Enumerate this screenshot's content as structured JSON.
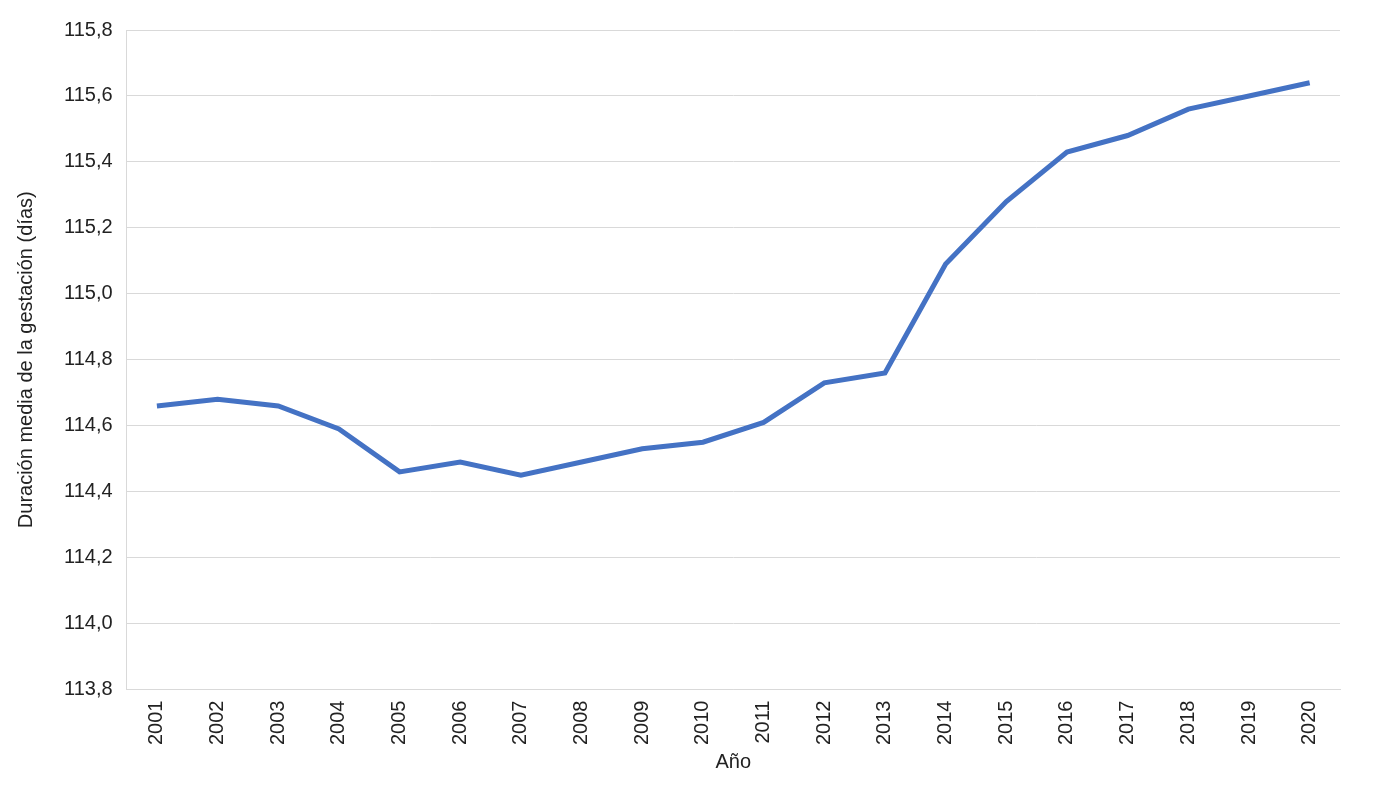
{
  "chart_data": {
    "type": "line",
    "x_label": "Año",
    "y_label": "Duración media de la gestación (días)",
    "categories": [
      "2001",
      "2002",
      "2003",
      "2004",
      "2005",
      "2006",
      "2007",
      "2008",
      "2009",
      "2010",
      "2011",
      "2012",
      "2013",
      "2014",
      "2015",
      "2016",
      "2017",
      "2018",
      "2019",
      "2020"
    ],
    "values": [
      114.66,
      114.68,
      114.66,
      114.59,
      114.46,
      114.49,
      114.45,
      114.49,
      114.53,
      114.55,
      114.61,
      114.73,
      114.76,
      115.09,
      115.28,
      115.43,
      115.48,
      115.56,
      115.6,
      115.64
    ],
    "color": "#4472c4",
    "ylim": [
      113.8,
      115.8
    ],
    "yticks": [
      {
        "value": 113.8,
        "label": "113,8"
      },
      {
        "value": 114.0,
        "label": "114,0"
      },
      {
        "value": 114.2,
        "label": "114,2"
      },
      {
        "value": 114.4,
        "label": "114,4"
      },
      {
        "value": 114.6,
        "label": "114,6"
      },
      {
        "value": 114.8,
        "label": "114,8"
      },
      {
        "value": 115.0,
        "label": "115,0"
      },
      {
        "value": 115.2,
        "label": "115,2"
      },
      {
        "value": 115.4,
        "label": "115,4"
      },
      {
        "value": 115.6,
        "label": "115,6"
      },
      {
        "value": 115.8,
        "label": "115,8"
      }
    ],
    "grid": true,
    "marker": "none",
    "line_style": "solid"
  }
}
